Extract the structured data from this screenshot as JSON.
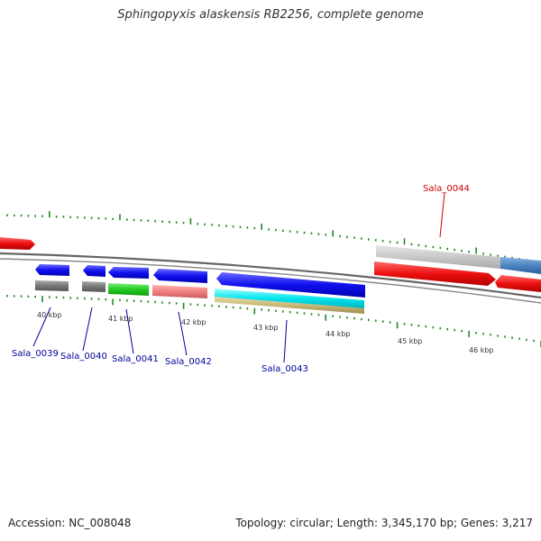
{
  "title": "Sphingopyxis alaskensis RB2256, complete genome",
  "footer": {
    "accession": "Accession: NC_008048",
    "topology": "Topology: circular; Length: 3,345,170 bp; Genes: 3,217"
  },
  "colors": {
    "cds_arrow": "#0000ee",
    "selected_gene": "#ee0000",
    "label_normal": "#000099",
    "label_selected": "#cc0000",
    "tick": "#228822",
    "backbone": "#666666"
  },
  "ticks": [
    {
      "label": "40 kbp"
    },
    {
      "label": "41 kbp"
    },
    {
      "label": "42 kbp"
    },
    {
      "label": "43 kbp"
    },
    {
      "label": "44 kbp"
    },
    {
      "label": "45 kbp"
    },
    {
      "label": "46 kbp"
    }
  ],
  "genes": [
    {
      "name": "Sala_0039"
    },
    {
      "name": "Sala_0040"
    },
    {
      "name": "Sala_0041"
    },
    {
      "name": "Sala_0042"
    },
    {
      "name": "Sala_0043"
    },
    {
      "name": "Sala_0044"
    }
  ]
}
